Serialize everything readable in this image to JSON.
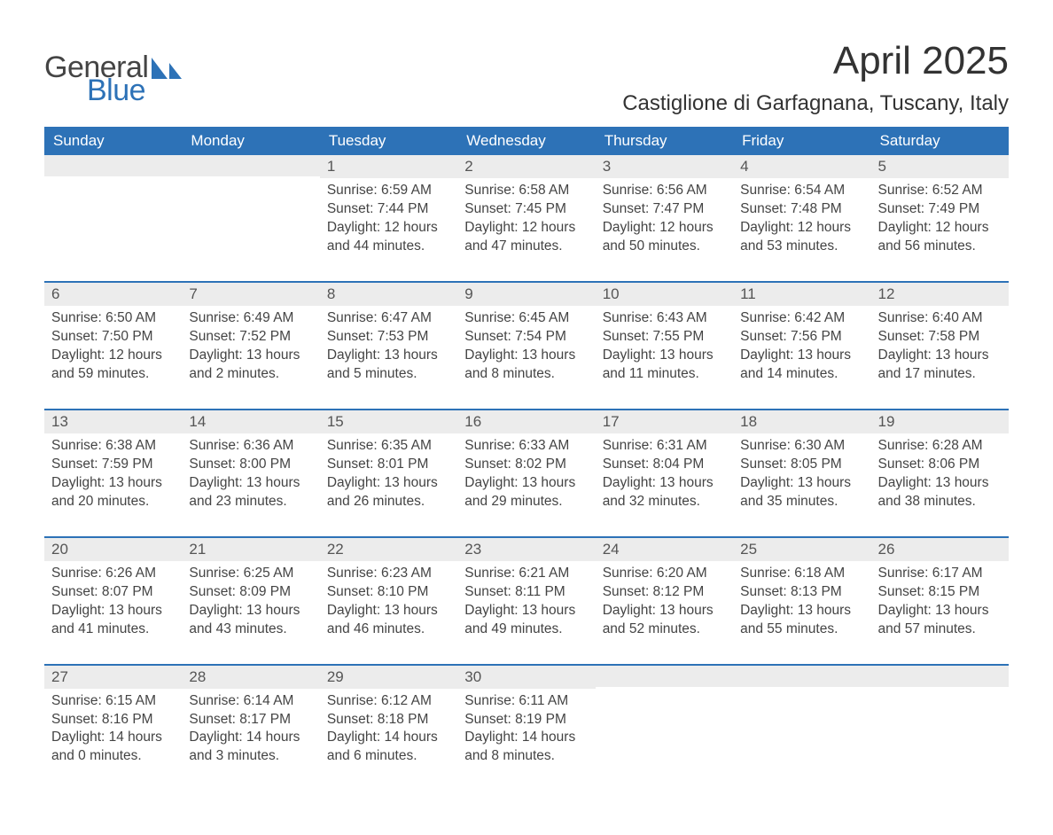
{
  "brand": {
    "text1": "General",
    "text2": "Blue",
    "color": "#2d72b7"
  },
  "title": "April 2025",
  "location": "Castiglione di Garfagnana, Tuscany, Italy",
  "colors": {
    "header_bg": "#2d72b7",
    "header_text": "#ffffff",
    "daynum_bg": "#ececec",
    "text": "#444444",
    "page_bg": "#ffffff"
  },
  "columns": [
    "Sunday",
    "Monday",
    "Tuesday",
    "Wednesday",
    "Thursday",
    "Friday",
    "Saturday"
  ],
  "weeks": [
    [
      {
        "day": "",
        "sunrise": "",
        "sunset": "",
        "daylight": ""
      },
      {
        "day": "",
        "sunrise": "",
        "sunset": "",
        "daylight": ""
      },
      {
        "day": "1",
        "sunrise": "Sunrise: 6:59 AM",
        "sunset": "Sunset: 7:44 PM",
        "daylight": "Daylight: 12 hours and 44 minutes."
      },
      {
        "day": "2",
        "sunrise": "Sunrise: 6:58 AM",
        "sunset": "Sunset: 7:45 PM",
        "daylight": "Daylight: 12 hours and 47 minutes."
      },
      {
        "day": "3",
        "sunrise": "Sunrise: 6:56 AM",
        "sunset": "Sunset: 7:47 PM",
        "daylight": "Daylight: 12 hours and 50 minutes."
      },
      {
        "day": "4",
        "sunrise": "Sunrise: 6:54 AM",
        "sunset": "Sunset: 7:48 PM",
        "daylight": "Daylight: 12 hours and 53 minutes."
      },
      {
        "day": "5",
        "sunrise": "Sunrise: 6:52 AM",
        "sunset": "Sunset: 7:49 PM",
        "daylight": "Daylight: 12 hours and 56 minutes."
      }
    ],
    [
      {
        "day": "6",
        "sunrise": "Sunrise: 6:50 AM",
        "sunset": "Sunset: 7:50 PM",
        "daylight": "Daylight: 12 hours and 59 minutes."
      },
      {
        "day": "7",
        "sunrise": "Sunrise: 6:49 AM",
        "sunset": "Sunset: 7:52 PM",
        "daylight": "Daylight: 13 hours and 2 minutes."
      },
      {
        "day": "8",
        "sunrise": "Sunrise: 6:47 AM",
        "sunset": "Sunset: 7:53 PM",
        "daylight": "Daylight: 13 hours and 5 minutes."
      },
      {
        "day": "9",
        "sunrise": "Sunrise: 6:45 AM",
        "sunset": "Sunset: 7:54 PM",
        "daylight": "Daylight: 13 hours and 8 minutes."
      },
      {
        "day": "10",
        "sunrise": "Sunrise: 6:43 AM",
        "sunset": "Sunset: 7:55 PM",
        "daylight": "Daylight: 13 hours and 11 minutes."
      },
      {
        "day": "11",
        "sunrise": "Sunrise: 6:42 AM",
        "sunset": "Sunset: 7:56 PM",
        "daylight": "Daylight: 13 hours and 14 minutes."
      },
      {
        "day": "12",
        "sunrise": "Sunrise: 6:40 AM",
        "sunset": "Sunset: 7:58 PM",
        "daylight": "Daylight: 13 hours and 17 minutes."
      }
    ],
    [
      {
        "day": "13",
        "sunrise": "Sunrise: 6:38 AM",
        "sunset": "Sunset: 7:59 PM",
        "daylight": "Daylight: 13 hours and 20 minutes."
      },
      {
        "day": "14",
        "sunrise": "Sunrise: 6:36 AM",
        "sunset": "Sunset: 8:00 PM",
        "daylight": "Daylight: 13 hours and 23 minutes."
      },
      {
        "day": "15",
        "sunrise": "Sunrise: 6:35 AM",
        "sunset": "Sunset: 8:01 PM",
        "daylight": "Daylight: 13 hours and 26 minutes."
      },
      {
        "day": "16",
        "sunrise": "Sunrise: 6:33 AM",
        "sunset": "Sunset: 8:02 PM",
        "daylight": "Daylight: 13 hours and 29 minutes."
      },
      {
        "day": "17",
        "sunrise": "Sunrise: 6:31 AM",
        "sunset": "Sunset: 8:04 PM",
        "daylight": "Daylight: 13 hours and 32 minutes."
      },
      {
        "day": "18",
        "sunrise": "Sunrise: 6:30 AM",
        "sunset": "Sunset: 8:05 PM",
        "daylight": "Daylight: 13 hours and 35 minutes."
      },
      {
        "day": "19",
        "sunrise": "Sunrise: 6:28 AM",
        "sunset": "Sunset: 8:06 PM",
        "daylight": "Daylight: 13 hours and 38 minutes."
      }
    ],
    [
      {
        "day": "20",
        "sunrise": "Sunrise: 6:26 AM",
        "sunset": "Sunset: 8:07 PM",
        "daylight": "Daylight: 13 hours and 41 minutes."
      },
      {
        "day": "21",
        "sunrise": "Sunrise: 6:25 AM",
        "sunset": "Sunset: 8:09 PM",
        "daylight": "Daylight: 13 hours and 43 minutes."
      },
      {
        "day": "22",
        "sunrise": "Sunrise: 6:23 AM",
        "sunset": "Sunset: 8:10 PM",
        "daylight": "Daylight: 13 hours and 46 minutes."
      },
      {
        "day": "23",
        "sunrise": "Sunrise: 6:21 AM",
        "sunset": "Sunset: 8:11 PM",
        "daylight": "Daylight: 13 hours and 49 minutes."
      },
      {
        "day": "24",
        "sunrise": "Sunrise: 6:20 AM",
        "sunset": "Sunset: 8:12 PM",
        "daylight": "Daylight: 13 hours and 52 minutes."
      },
      {
        "day": "25",
        "sunrise": "Sunrise: 6:18 AM",
        "sunset": "Sunset: 8:13 PM",
        "daylight": "Daylight: 13 hours and 55 minutes."
      },
      {
        "day": "26",
        "sunrise": "Sunrise: 6:17 AM",
        "sunset": "Sunset: 8:15 PM",
        "daylight": "Daylight: 13 hours and 57 minutes."
      }
    ],
    [
      {
        "day": "27",
        "sunrise": "Sunrise: 6:15 AM",
        "sunset": "Sunset: 8:16 PM",
        "daylight": "Daylight: 14 hours and 0 minutes."
      },
      {
        "day": "28",
        "sunrise": "Sunrise: 6:14 AM",
        "sunset": "Sunset: 8:17 PM",
        "daylight": "Daylight: 14 hours and 3 minutes."
      },
      {
        "day": "29",
        "sunrise": "Sunrise: 6:12 AM",
        "sunset": "Sunset: 8:18 PM",
        "daylight": "Daylight: 14 hours and 6 minutes."
      },
      {
        "day": "30",
        "sunrise": "Sunrise: 6:11 AM",
        "sunset": "Sunset: 8:19 PM",
        "daylight": "Daylight: 14 hours and 8 minutes."
      },
      {
        "day": "",
        "sunrise": "",
        "sunset": "",
        "daylight": ""
      },
      {
        "day": "",
        "sunrise": "",
        "sunset": "",
        "daylight": ""
      },
      {
        "day": "",
        "sunrise": "",
        "sunset": "",
        "daylight": ""
      }
    ]
  ]
}
